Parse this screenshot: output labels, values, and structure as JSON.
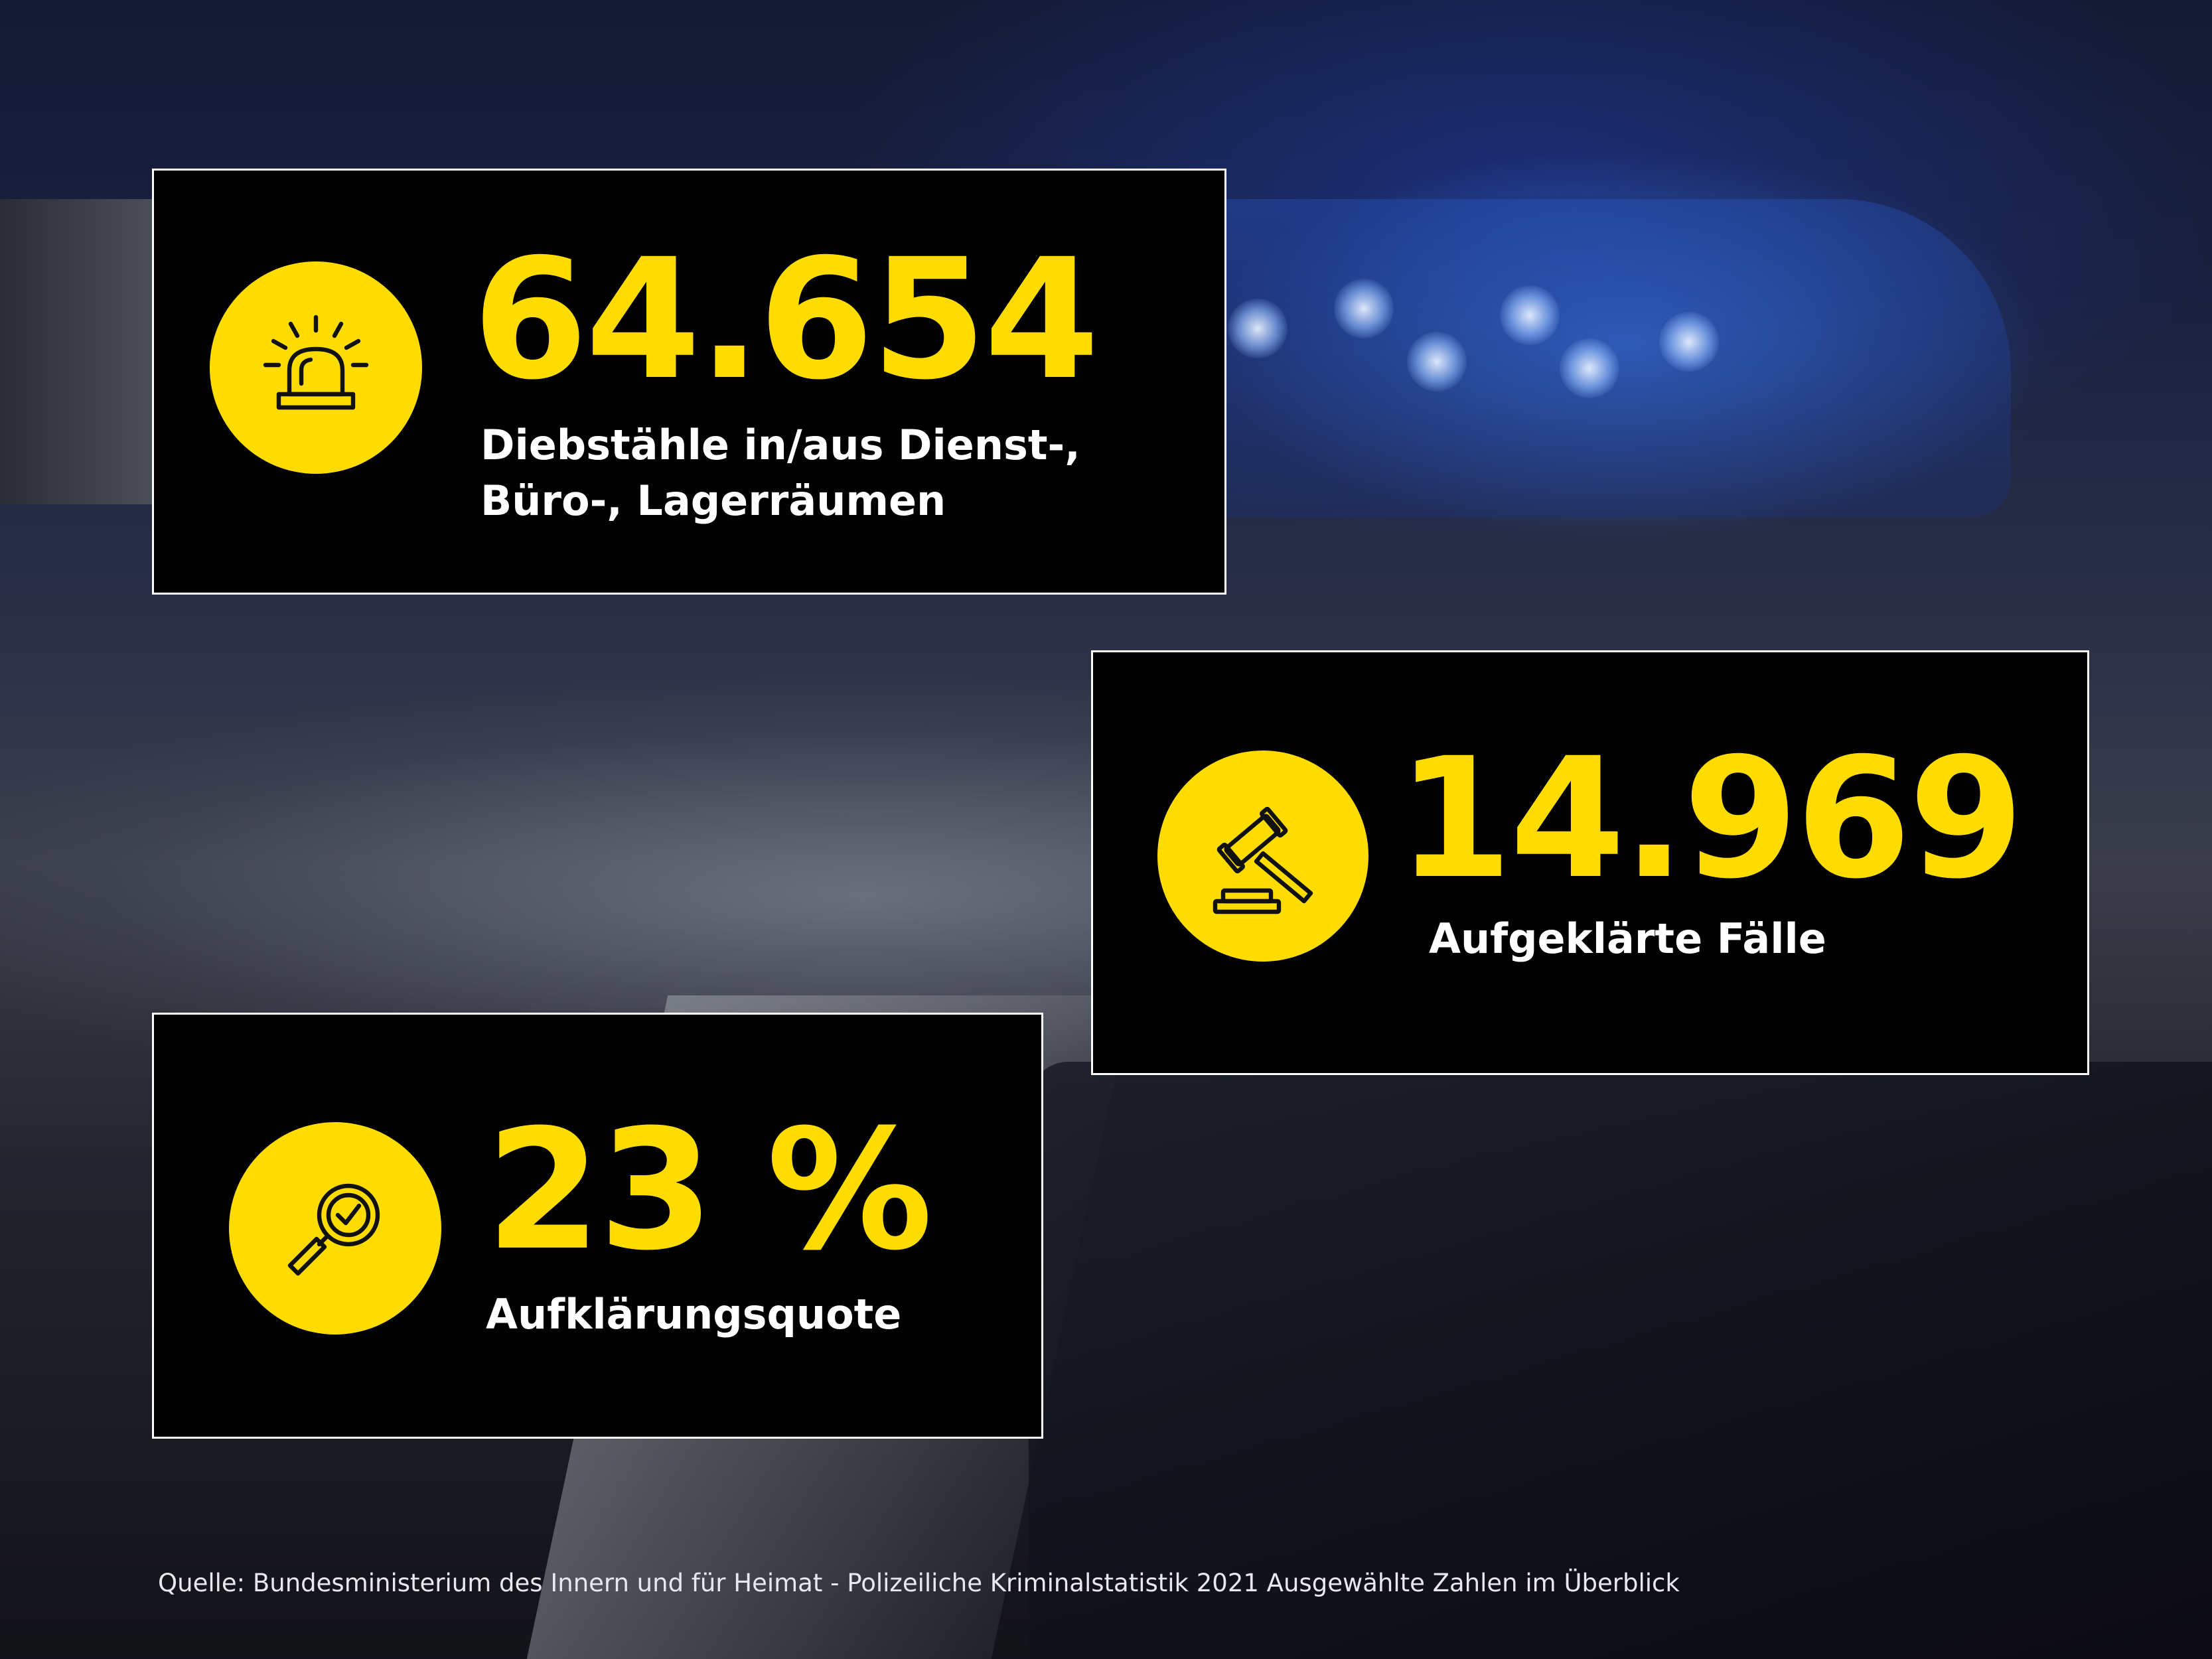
{
  "stats": [
    {
      "value": "64.654",
      "label_lines": [
        "Diebstähle in/aus Dienst-,",
        "Büro-, Lagerräumen"
      ],
      "icon": "alarm-siren-icon"
    },
    {
      "value": "14.969",
      "label_lines": [
        "Aufgeklärte Fälle"
      ],
      "icon": "gavel-icon"
    },
    {
      "value": "23 %",
      "label_lines": [
        "Aufklärungsquote"
      ],
      "icon": "magnifier-check-icon"
    }
  ],
  "source": "Quelle: Bundesministerium des Innern und für Heimat - Polizeiliche Kriminalstatistik 2021 Ausgewählte Zahlen im Überblick",
  "colors": {
    "accent": "#FFDC00",
    "card_bg": "#000000",
    "card_border": "#FFFFFF",
    "text": "#FFFFFF"
  }
}
